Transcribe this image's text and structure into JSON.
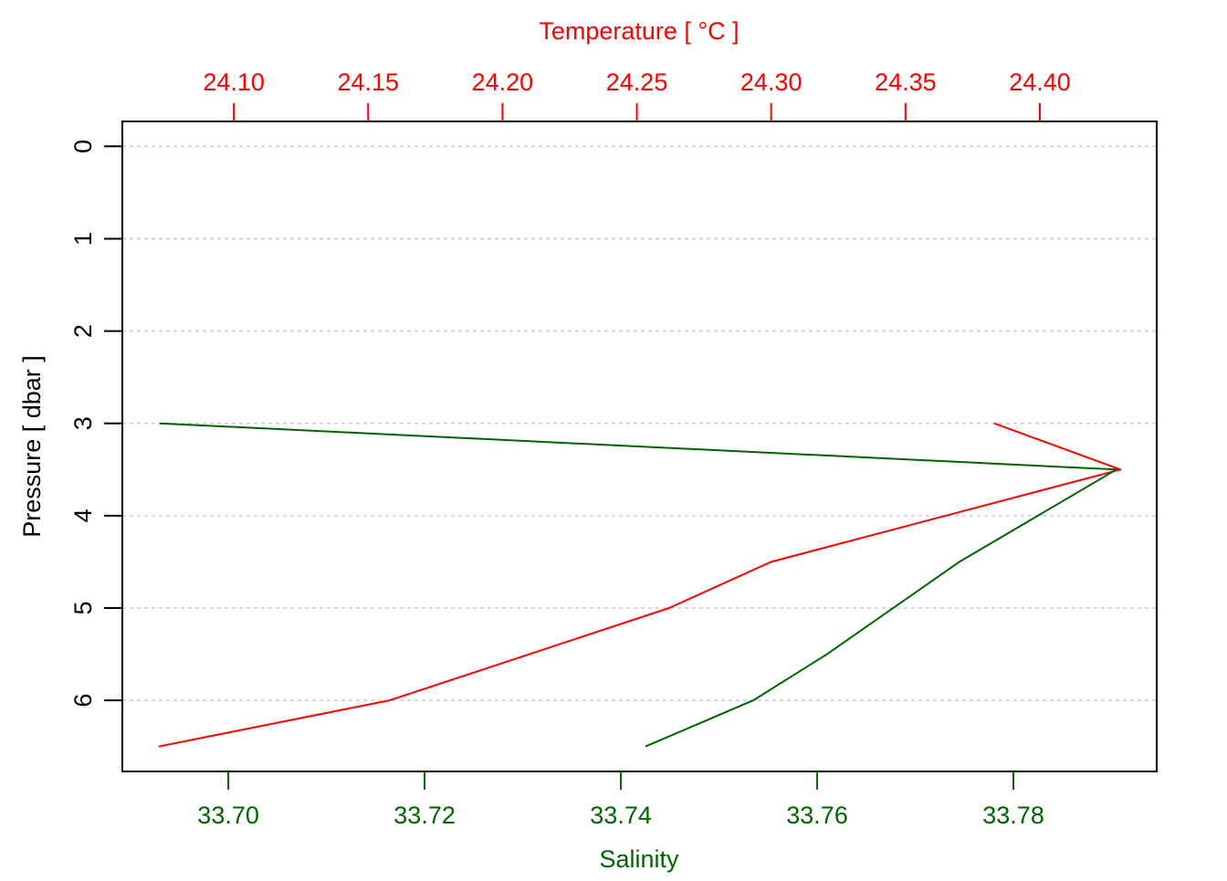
{
  "chart_data": {
    "type": "line",
    "title": "",
    "ylabel": "Pressure [ dbar ]",
    "ylim": [
      6.77,
      -0.27
    ],
    "y_reversed": true,
    "y_ticks": [
      0,
      1,
      2,
      3,
      4,
      5,
      6
    ],
    "y_tick_labels": [
      "0",
      "1",
      "2",
      "3",
      "4",
      "5",
      "6"
    ],
    "grid": "horizontal dashed at y ticks",
    "x_axes": {
      "bottom": {
        "label": "Salinity",
        "color": "#006400",
        "lim": [
          33.6892,
          33.7946
        ],
        "ticks": [
          33.7,
          33.72,
          33.74,
          33.76,
          33.78
        ],
        "tick_labels": [
          "33.70",
          "33.72",
          "33.74",
          "33.76",
          "33.78"
        ]
      },
      "top": {
        "label": "Temperature [ °C ]",
        "color": "#ff0000",
        "lim": [
          24.0585,
          24.4435
        ],
        "ticks": [
          24.1,
          24.15,
          24.2,
          24.25,
          24.3,
          24.35,
          24.4
        ],
        "tick_labels": [
          "24.10",
          "24.15",
          "24.20",
          "24.25",
          "24.30",
          "24.35",
          "24.40"
        ]
      }
    },
    "series": [
      {
        "axis": "top",
        "color": "#ff0000",
        "points": [
          {
            "x": 24.383,
            "y": 3.0
          },
          {
            "x": 24.43,
            "y": 3.5
          },
          {
            "x": 24.3,
            "y": 4.5
          },
          {
            "x": 24.262,
            "y": 5.0
          },
          {
            "x": 24.158,
            "y": 6.0
          },
          {
            "x": 24.072,
            "y": 6.5
          }
        ]
      },
      {
        "axis": "bottom",
        "color": "#006400",
        "points": [
          {
            "x": 33.693,
            "y": 3.0
          },
          {
            "x": 33.7905,
            "y": 3.5
          },
          {
            "x": 33.7745,
            "y": 4.5
          },
          {
            "x": 33.761,
            "y": 5.5
          },
          {
            "x": 33.7535,
            "y": 6.0
          },
          {
            "x": 33.7425,
            "y": 6.5
          }
        ]
      }
    ]
  }
}
